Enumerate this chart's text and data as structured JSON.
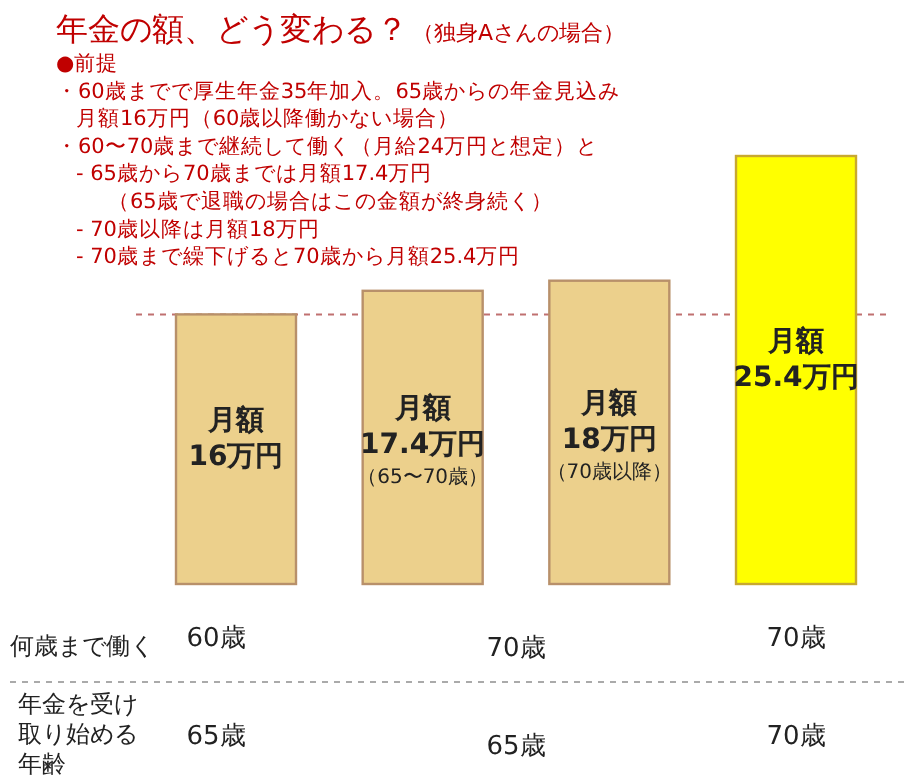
{
  "chart_data": {
    "type": "bar",
    "title": "年金の額、どう変わる？",
    "subtitle": "（独身Aさんの場合）",
    "categories": [
      null,
      null,
      null,
      null
    ],
    "values": [
      16,
      17.4,
      18,
      25.4
    ],
    "colors": [
      "#ecd08c",
      "#ecd08c",
      "#ecd08c",
      "#ffff00"
    ],
    "value_labels": [
      "月額16万円",
      "月額17.4万円（65〜70歳）",
      "月額18万円（70歳以降）",
      "月額25.4万円"
    ],
    "ref_lines": [
      {
        "axis": "y",
        "value": 16,
        "color": "#c07070",
        "line_style": "dashed"
      }
    ],
    "annotations": [
      "●前提",
      "・60歳までで厚生年金35年加入。65歳からの年金見込み",
      "月額16万円（60歳以降働かない場合）",
      "・60〜70歳まで継続して働く（月給24万円と想定）と",
      "- 65歳から70歳までは月額17.4万円",
      "（65歳で退職の場合はこの金額が終身続く）",
      "- 70歳以降は月額18万円",
      "- 70歳まで繰下げると70歳から月額25.4万円",
      "何歳まで働く",
      "60歳",
      "70歳",
      "70歳",
      "年金を受け取り始める年齢",
      "65歳",
      "65歳",
      "70歳"
    ]
  }
}
